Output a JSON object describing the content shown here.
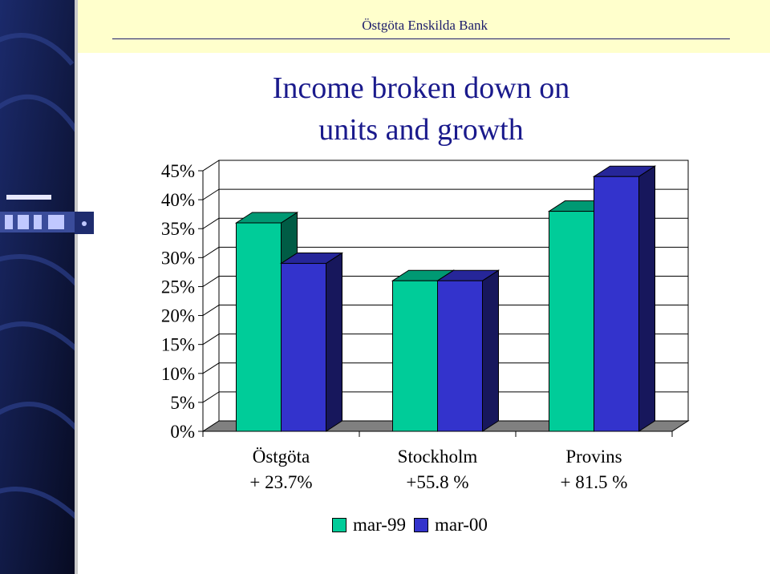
{
  "header": {
    "bank_name": "Östgöta Enskilda Bank"
  },
  "slide": {
    "title_line1": "Income broken down on",
    "title_line2": "units and growth"
  },
  "chart_data": {
    "type": "bar",
    "categories": [
      "Östgöta",
      "Stockholm",
      "Provins"
    ],
    "category_sublabels": [
      "+ 23.7%",
      "+55.8 %",
      "+ 81.5 %"
    ],
    "series": [
      {
        "name": "mar-99",
        "values": [
          36,
          26,
          38
        ],
        "color": "#00cc99"
      },
      {
        "name": "mar-00",
        "values": [
          29,
          26,
          44
        ],
        "color": "#3333cc"
      }
    ],
    "ylim": [
      0,
      45
    ],
    "yticks": [
      "0%",
      "5%",
      "10%",
      "15%",
      "20%",
      "25%",
      "30%",
      "35%",
      "40%",
      "45%"
    ],
    "legend_position": "bottom",
    "style": "3d"
  }
}
